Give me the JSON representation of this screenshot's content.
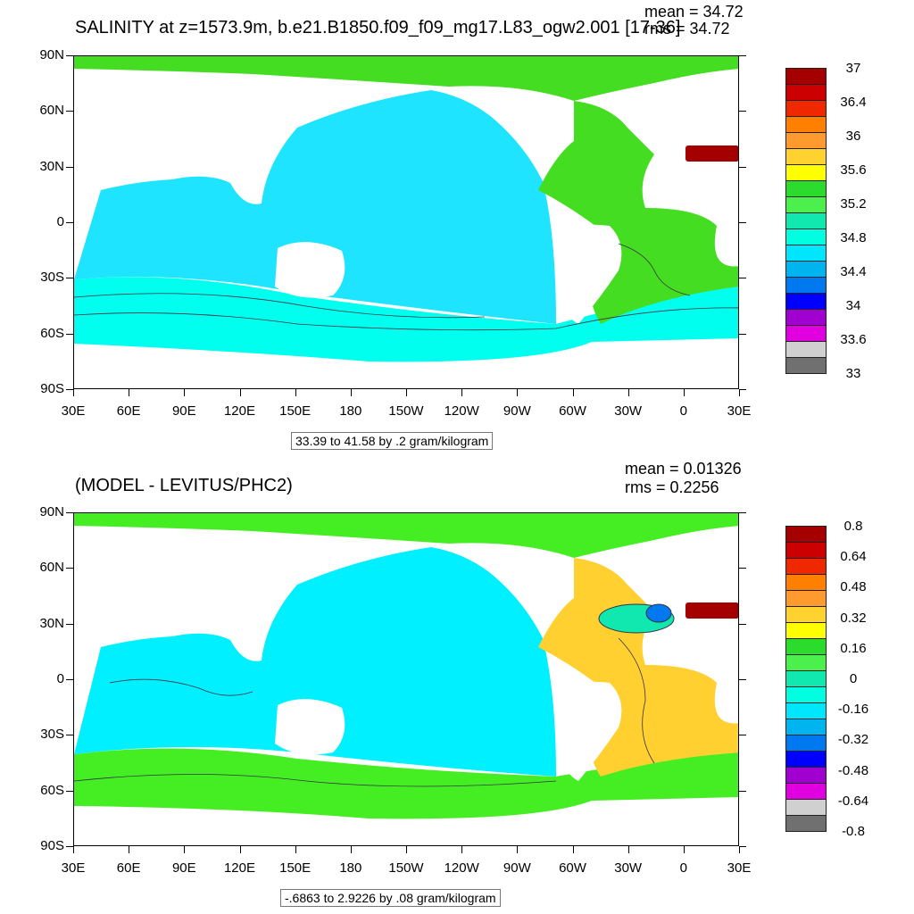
{
  "top": {
    "title": "SALINITY at z=1573.9m, b.e21.B1850.f09_f09_mg17.L83_ogw2.001 [17-36]",
    "mean_text": "mean = 34.72",
    "rms_text": "rms = 34.72",
    "range_text": "33.39 to 41.58 by .2 gram/kilogram",
    "colorbar_labels": [
      "37",
      "36.4",
      "36",
      "35.6",
      "35.2",
      "34.8",
      "34.4",
      "34",
      "33.6",
      "33"
    ]
  },
  "bottom": {
    "title": "(MODEL - LEVITUS/PHC2)",
    "mean_text": "mean = 0.01326",
    "rms_text": "rms = 0.2256",
    "range_text": "-.6863 to 2.9226 by .08 gram/kilogram",
    "colorbar_labels": [
      "0.8",
      "0.64",
      "0.48",
      "0.32",
      "0.16",
      "0",
      "-0.16",
      "-0.32",
      "-0.48",
      "-0.64",
      "-0.8"
    ]
  },
  "axes": {
    "lat_labels": [
      "90N",
      "60N",
      "30N",
      "0",
      "30S",
      "60S",
      "90S"
    ],
    "lon_labels": [
      "30E",
      "60E",
      "90E",
      "120E",
      "150E",
      "180",
      "150W",
      "120W",
      "90W",
      "60W",
      "30W",
      "0",
      "30E"
    ]
  },
  "colors": {
    "colorbar": [
      "#a50000",
      "#cc0000",
      "#f02800",
      "#ff7f00",
      "#ff9a2e",
      "#ffd230",
      "#ffff00",
      "#2cdc2c",
      "#4cf04c",
      "#10e8b0",
      "#00ffe0",
      "#00e6ff",
      "#00b4f0",
      "#0078f0",
      "#0000ff",
      "#a000d0",
      "#e000e0",
      "#d0d0d0",
      "#707070"
    ],
    "ocean_top": "#1ee4ff",
    "southern_top": "#00ffee",
    "atlantic_top": "#44dd22",
    "ocean_bottom": "#00f0ff",
    "southern_bottom": "#44ee22",
    "atlantic_bottom": "#ffd030",
    "land": "#ffffff"
  }
}
